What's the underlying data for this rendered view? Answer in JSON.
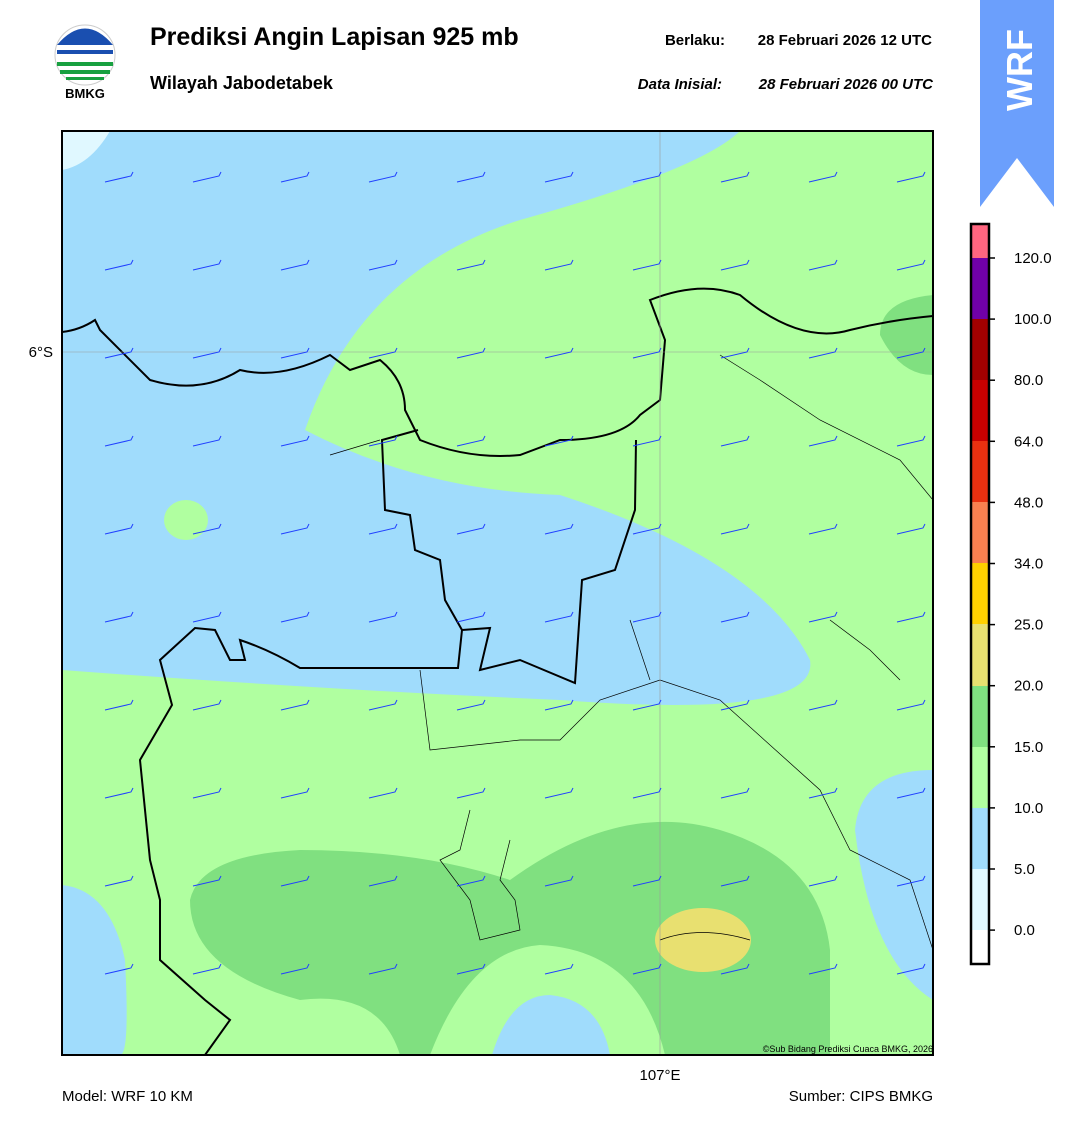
{
  "header": {
    "title": "Prediksi Angin Lapisan 925 mb",
    "subtitle": "Wilayah Jabodetabek",
    "logo_text": "BMKG",
    "valid_label": "Berlaku:",
    "valid_time": "28 Februari 2026 12 UTC",
    "init_label": "Data Inisial:",
    "init_time": "28 Februari 2026 00 UTC",
    "badge": "WRF"
  },
  "map": {
    "lat_label": "6°S",
    "lon_label": "107°E",
    "copyright": "©Sub Bidang Prediksi Cuaca BMKG, 2026"
  },
  "legend": {
    "ticks": [
      "120.0",
      "100.0",
      "80.0",
      "64.0",
      "48.0",
      "34.0",
      "25.0",
      "20.0",
      "15.0",
      "10.0",
      "5.0",
      "0.0"
    ],
    "colors": [
      "#ff6680",
      "#7000a8",
      "#a00000",
      "#c80000",
      "#e83010",
      "#f88050",
      "#ffd000",
      "#e8e070",
      "#80e080",
      "#b0ffa0",
      "#a0dcfc",
      "#e0f8ff",
      "#ffffff"
    ]
  },
  "footer": {
    "model": "Model: WRF 10 KM",
    "source": "Sumber: CIPS BMKG"
  }
}
